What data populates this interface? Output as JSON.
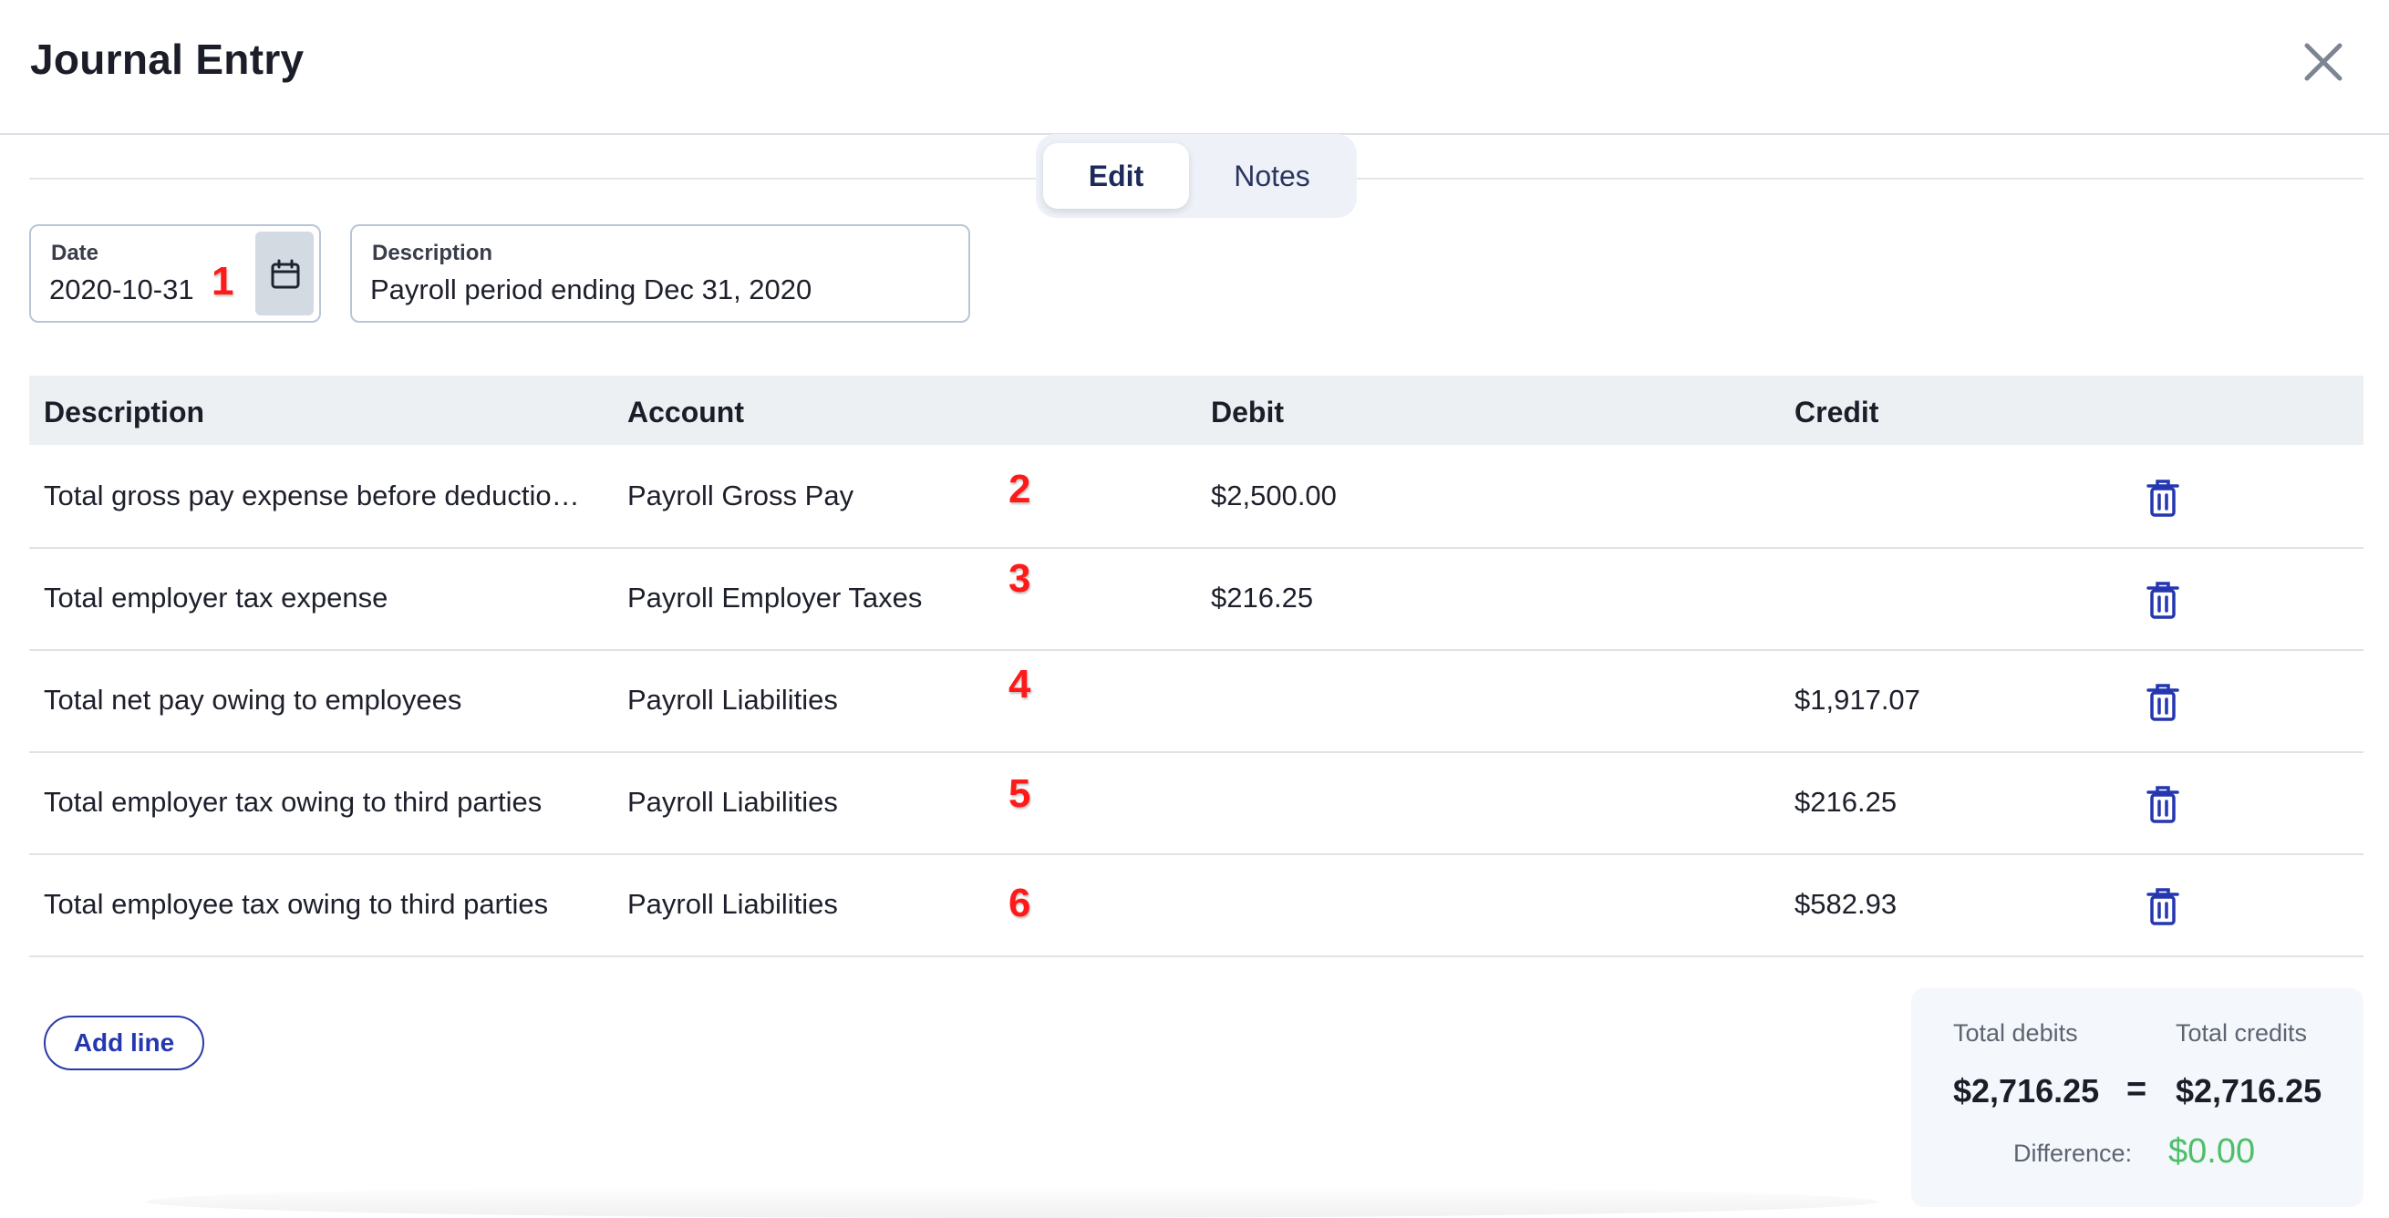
{
  "header": {
    "title": "Journal Entry",
    "close_icon": "close-icon"
  },
  "tabs": [
    {
      "label": "Edit",
      "active": true
    },
    {
      "label": "Notes",
      "active": false
    }
  ],
  "form": {
    "date": {
      "label": "Date",
      "value": "2020-10-31"
    },
    "description": {
      "label": "Description",
      "value": "Payroll period ending Dec 31, 2020"
    }
  },
  "annotations": [
    "1",
    "2",
    "3",
    "4",
    "5",
    "6"
  ],
  "table": {
    "headers": {
      "description": "Description",
      "account": "Account",
      "debit": "Debit",
      "credit": "Credit"
    },
    "rows": [
      {
        "description": "Total gross pay expense before deductio…",
        "account": "Payroll Gross Pay",
        "debit": "$2,500.00",
        "credit": ""
      },
      {
        "description": "Total employer tax expense",
        "account": "Payroll Employer Taxes",
        "debit": "$216.25",
        "credit": ""
      },
      {
        "description": "Total net pay owing to employees",
        "account": "Payroll Liabilities",
        "debit": "",
        "credit": "$1,917.07"
      },
      {
        "description": "Total employer tax owing to third parties",
        "account": "Payroll Liabilities",
        "debit": "",
        "credit": "$216.25"
      },
      {
        "description": "Total employee tax owing to third parties",
        "account": "Payroll Liabilities",
        "debit": "",
        "credit": "$582.93"
      }
    ]
  },
  "actions": {
    "add_line": "Add line"
  },
  "summary": {
    "total_debits_label": "Total debits",
    "total_credits_label": "Total credits",
    "total_debits": "$2,716.25",
    "total_credits": "$2,716.25",
    "equals": "=",
    "difference_label": "Difference:",
    "difference": "$0.00"
  },
  "colors": {
    "accent": "#2437b0",
    "positive": "#4cbf68",
    "annotation": "#ff1a1a"
  }
}
